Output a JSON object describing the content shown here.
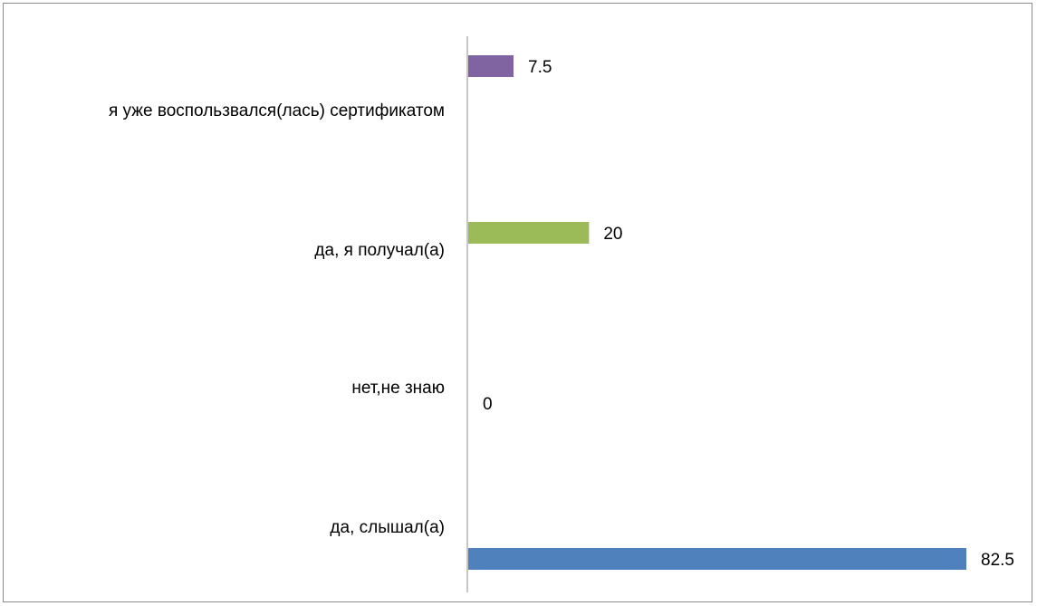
{
  "chart_data": {
    "type": "bar",
    "orientation": "horizontal",
    "categories": [
      "да, слышал(а)",
      "нет,не знаю",
      "да, я получал(а)",
      "я уже воспользвался(лась) сертификатом"
    ],
    "values": [
      82.5,
      0,
      20,
      7.5
    ],
    "value_labels": [
      "82.5",
      "0",
      "20",
      "7.5"
    ],
    "colors": [
      "#4f81bd",
      "#c0504d",
      "#9bbb59",
      "#8064a2"
    ],
    "xlim": [
      0,
      90
    ],
    "grid": false,
    "legend": "none"
  }
}
